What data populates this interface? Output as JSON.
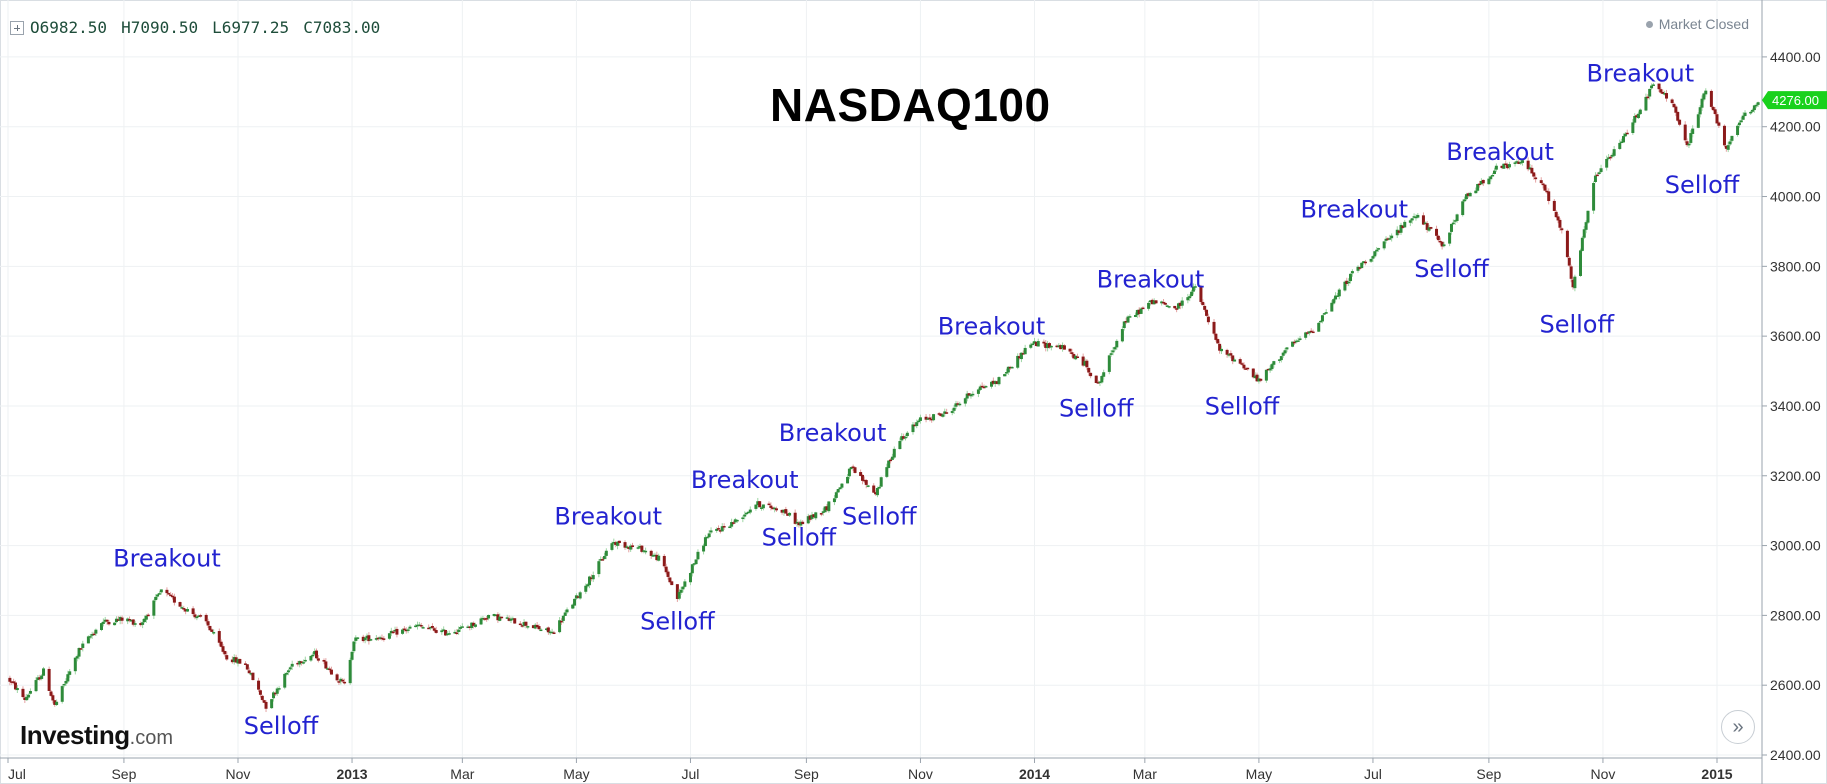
{
  "ohlc_bar": {
    "open": "O6982.50",
    "high": "H7090.50",
    "low": "L6977.25",
    "close": "C7083.00"
  },
  "status": {
    "market": "Market Closed"
  },
  "logo": {
    "brand": "Investing",
    "suffix": ".com"
  },
  "controls": {
    "scroll_right": "»"
  },
  "colors": {
    "up": "#2e8b3a",
    "down": "#8b1a1a",
    "annotation": "#2323d0",
    "last_price_bg": "#19d11c",
    "grid": "#eef1f3"
  },
  "chart_data": {
    "type": "candlestick",
    "title": "NASDAQ100",
    "ylim": [
      2400,
      4500
    ],
    "y_ticks": [
      2400,
      2600,
      2800,
      3000,
      3200,
      3400,
      3600,
      3800,
      4000,
      4200,
      4400
    ],
    "y_tick_labels": [
      "2400.00",
      "2600.00",
      "2800.00",
      "3000.00",
      "3200.00",
      "3400.00",
      "3600.00",
      "3800.00",
      "4000.00",
      "4200.00",
      "4400.00"
    ],
    "x_ticks": [
      {
        "date": "2012-07-01",
        "label": "Jul",
        "bold": false
      },
      {
        "date": "2012-09-01",
        "label": "Sep",
        "bold": false
      },
      {
        "date": "2012-11-01",
        "label": "Nov",
        "bold": false
      },
      {
        "date": "2013-01-01",
        "label": "2013",
        "bold": true
      },
      {
        "date": "2013-03-01",
        "label": "Mar",
        "bold": false
      },
      {
        "date": "2013-05-01",
        "label": "May",
        "bold": false
      },
      {
        "date": "2013-07-01",
        "label": "Jul",
        "bold": false
      },
      {
        "date": "2013-09-01",
        "label": "Sep",
        "bold": false
      },
      {
        "date": "2013-11-01",
        "label": "Nov",
        "bold": false
      },
      {
        "date": "2014-01-01",
        "label": "2014",
        "bold": true
      },
      {
        "date": "2014-03-01",
        "label": "Mar",
        "bold": false
      },
      {
        "date": "2014-05-01",
        "label": "May",
        "bold": false
      },
      {
        "date": "2014-07-01",
        "label": "Jul",
        "bold": false
      },
      {
        "date": "2014-09-01",
        "label": "Sep",
        "bold": false
      },
      {
        "date": "2014-11-01",
        "label": "Nov",
        "bold": false
      },
      {
        "date": "2015-01-01",
        "label": "2015",
        "bold": true
      }
    ],
    "x_range": [
      "2012-07-01",
      "2015-01-24"
    ],
    "last_price": "4276.00",
    "last_value": 4276,
    "path": [
      [
        "2012-07-01",
        2620
      ],
      [
        "2012-07-10",
        2560
      ],
      [
        "2012-07-20",
        2640
      ],
      [
        "2012-07-26",
        2540
      ],
      [
        "2012-08-08",
        2700
      ],
      [
        "2012-08-20",
        2780
      ],
      [
        "2012-09-01",
        2790
      ],
      [
        "2012-09-10",
        2775
      ],
      [
        "2012-09-21",
        2870
      ],
      [
        "2012-10-01",
        2830
      ],
      [
        "2012-10-15",
        2780
      ],
      [
        "2012-10-26",
        2680
      ],
      [
        "2012-11-05",
        2660
      ],
      [
        "2012-11-16",
        2540
      ],
      [
        "2012-11-30",
        2660
      ],
      [
        "2012-12-12",
        2690
      ],
      [
        "2012-12-28",
        2600
      ],
      [
        "2013-01-02",
        2730
      ],
      [
        "2013-01-18",
        2740
      ],
      [
        "2013-02-05",
        2770
      ],
      [
        "2013-02-20",
        2750
      ],
      [
        "2013-03-05",
        2770
      ],
      [
        "2013-03-15",
        2800
      ],
      [
        "2013-04-01",
        2780
      ],
      [
        "2013-04-18",
        2750
      ],
      [
        "2013-05-01",
        2850
      ],
      [
        "2013-05-10",
        2920
      ],
      [
        "2013-05-20",
        3010
      ],
      [
        "2013-06-05",
        2990
      ],
      [
        "2013-06-15",
        2960
      ],
      [
        "2013-06-24",
        2850
      ],
      [
        "2013-07-10",
        3030
      ],
      [
        "2013-07-25",
        3070
      ],
      [
        "2013-08-05",
        3120
      ],
      [
        "2013-08-20",
        3100
      ],
      [
        "2013-08-28",
        3060
      ],
      [
        "2013-09-12",
        3110
      ],
      [
        "2013-09-25",
        3220
      ],
      [
        "2013-10-08",
        3150
      ],
      [
        "2013-10-20",
        3300
      ],
      [
        "2013-11-01",
        3360
      ],
      [
        "2013-11-15",
        3380
      ],
      [
        "2013-12-01",
        3450
      ],
      [
        "2013-12-12",
        3470
      ],
      [
        "2013-12-30",
        3580
      ],
      [
        "2014-01-15",
        3570
      ],
      [
        "2014-01-28",
        3520
      ],
      [
        "2014-02-04",
        3460
      ],
      [
        "2014-02-18",
        3640
      ],
      [
        "2014-03-05",
        3700
      ],
      [
        "2014-03-18",
        3680
      ],
      [
        "2014-03-28",
        3740
      ],
      [
        "2014-04-10",
        3560
      ],
      [
        "2014-04-22",
        3520
      ],
      [
        "2014-05-01",
        3470
      ],
      [
        "2014-05-15",
        3560
      ],
      [
        "2014-05-30",
        3620
      ],
      [
        "2014-06-20",
        3780
      ],
      [
        "2014-07-10",
        3880
      ],
      [
        "2014-07-24",
        3950
      ],
      [
        "2014-08-07",
        3860
      ],
      [
        "2014-08-20",
        4000
      ],
      [
        "2014-09-05",
        4080
      ],
      [
        "2014-09-20",
        4100
      ],
      [
        "2014-10-01",
        4020
      ],
      [
        "2014-10-10",
        3900
      ],
      [
        "2014-10-16",
        3740
      ],
      [
        "2014-10-28",
        4060
      ],
      [
        "2014-11-10",
        4150
      ],
      [
        "2014-11-28",
        4320
      ],
      [
        "2014-12-08",
        4270
      ],
      [
        "2014-12-16",
        4140
      ],
      [
        "2014-12-26",
        4310
      ],
      [
        "2015-01-06",
        4130
      ],
      [
        "2015-01-12",
        4210
      ],
      [
        "2015-01-24",
        4276
      ]
    ],
    "annotations": [
      {
        "text": "Breakout",
        "date": "2012-09-24",
        "value": 2940
      },
      {
        "text": "Selloff",
        "date": "2012-11-24",
        "value": 2460
      },
      {
        "text": "Breakout",
        "date": "2013-05-18",
        "value": 3060
      },
      {
        "text": "Selloff",
        "date": "2013-06-24",
        "value": 2760
      },
      {
        "text": "Breakout",
        "date": "2013-07-30",
        "value": 3165
      },
      {
        "text": "Selloff",
        "date": "2013-08-28",
        "value": 3000
      },
      {
        "text": "Breakout",
        "date": "2013-09-15",
        "value": 3300
      },
      {
        "text": "Selloff",
        "date": "2013-10-10",
        "value": 3060
      },
      {
        "text": "Breakout",
        "date": "2013-12-09",
        "value": 3605
      },
      {
        "text": "Selloff",
        "date": "2014-02-03",
        "value": 3370
      },
      {
        "text": "Breakout",
        "date": "2014-03-04",
        "value": 3740
      },
      {
        "text": "Selloff",
        "date": "2014-04-22",
        "value": 3375
      },
      {
        "text": "Breakout",
        "date": "2014-06-21",
        "value": 3940
      },
      {
        "text": "Selloff",
        "date": "2014-08-12",
        "value": 3770
      },
      {
        "text": "Breakout",
        "date": "2014-09-07",
        "value": 4105
      },
      {
        "text": "Selloff",
        "date": "2014-10-18",
        "value": 3610
      },
      {
        "text": "Breakout",
        "date": "2014-11-21",
        "value": 4330
      },
      {
        "text": "Selloff",
        "date": "2014-12-24",
        "value": 4010
      }
    ]
  }
}
